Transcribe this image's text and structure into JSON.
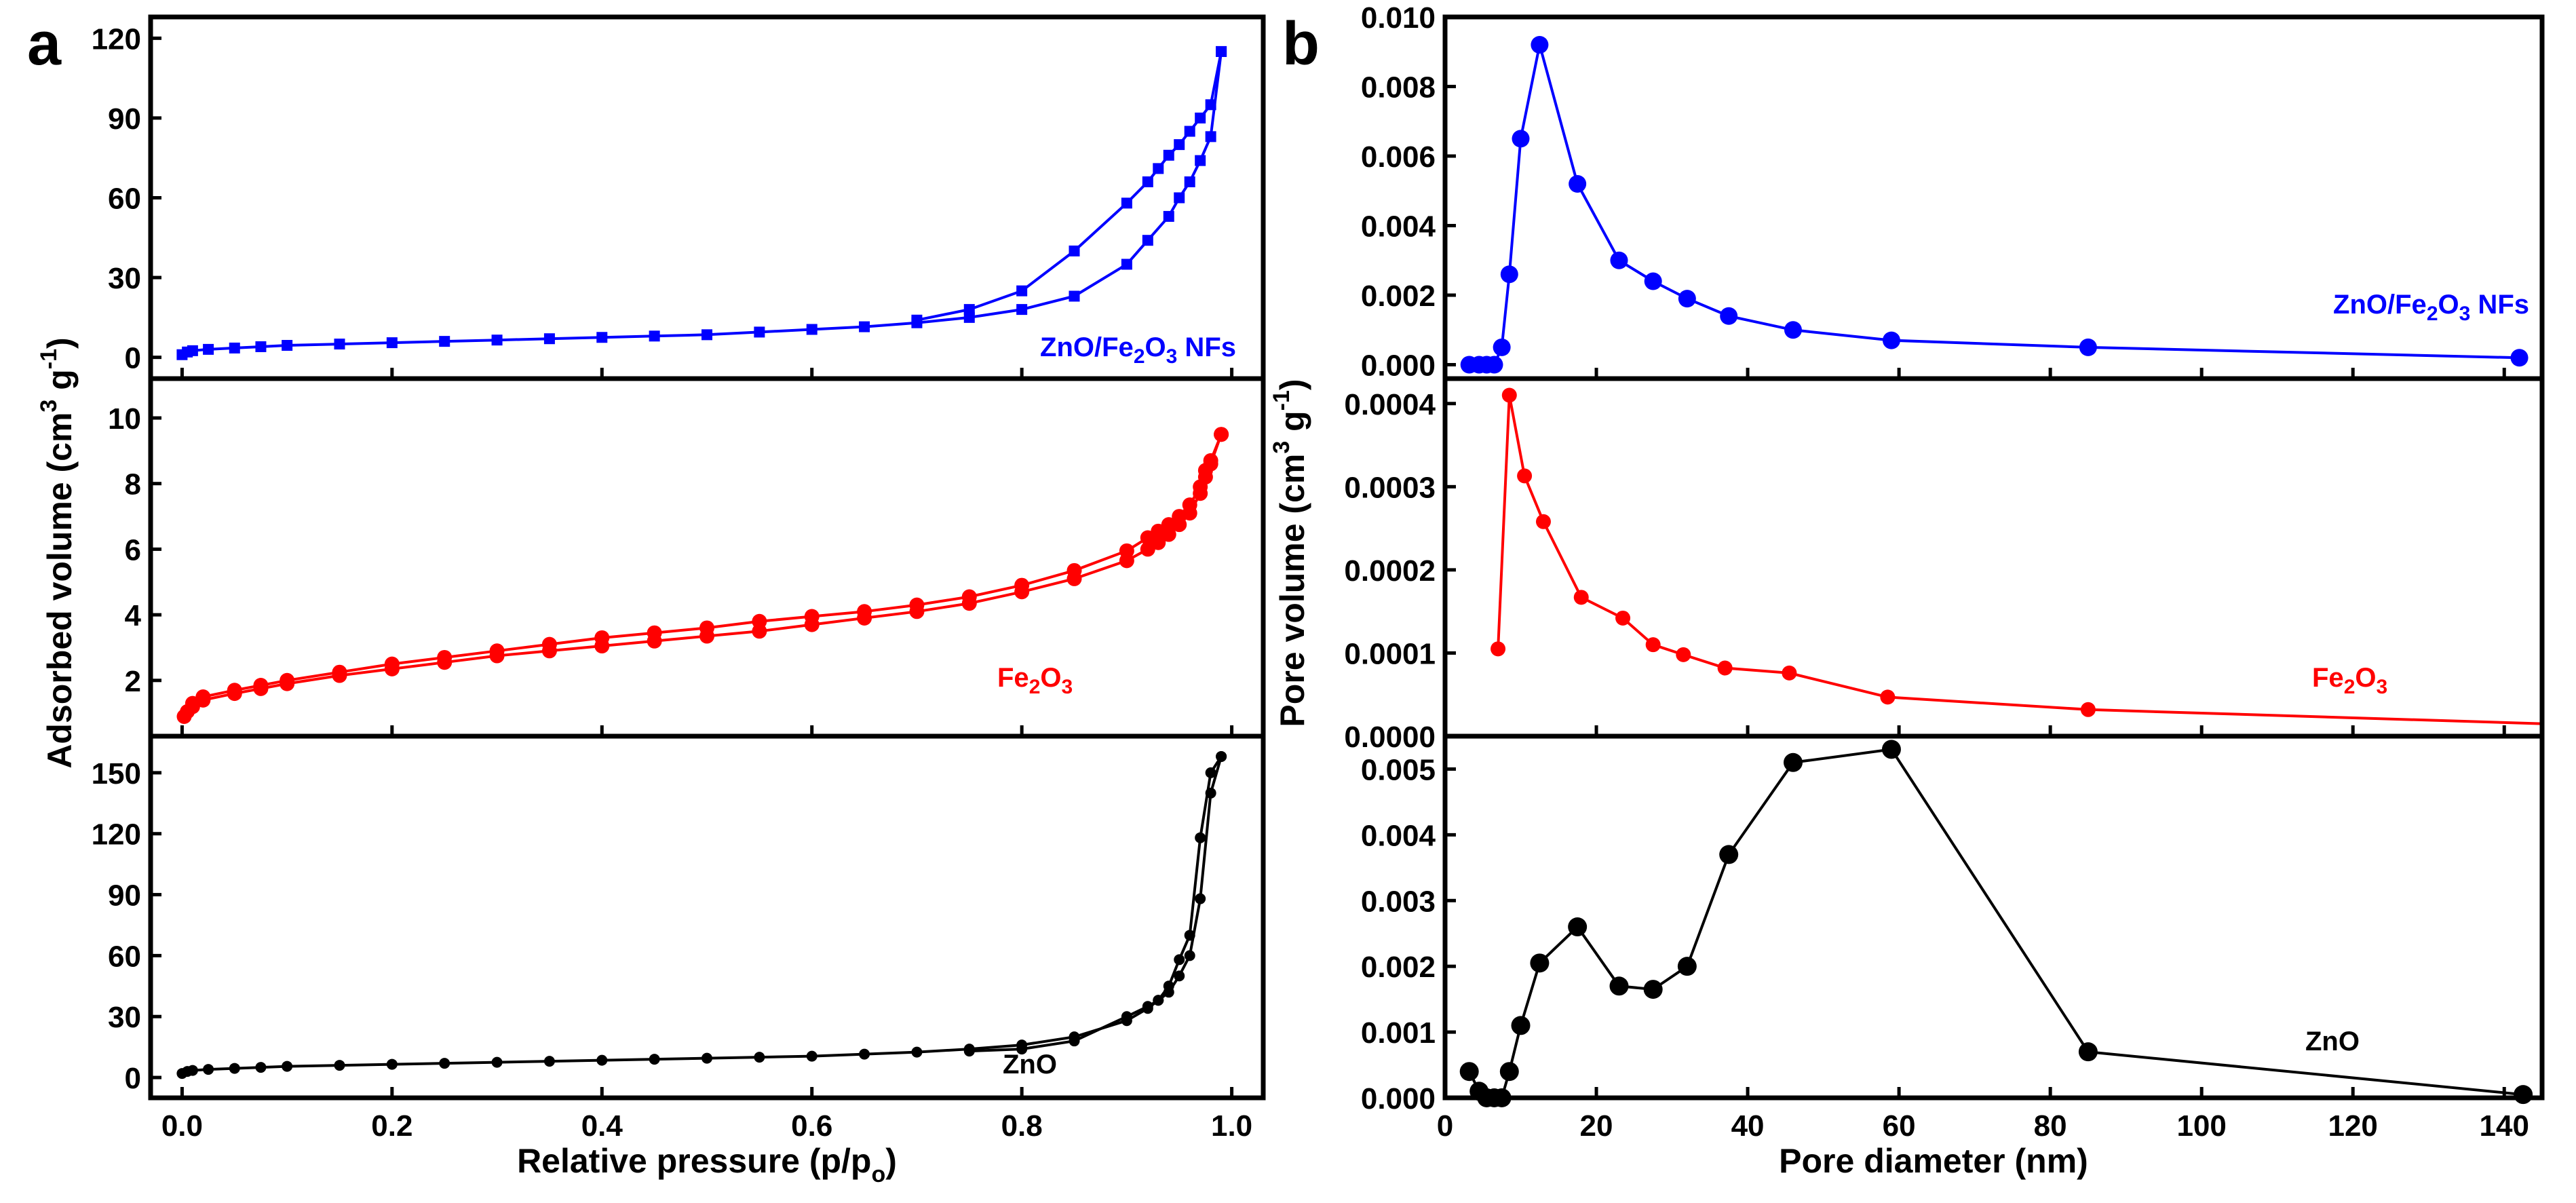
{
  "panels": {
    "a": {
      "label": "a",
      "xlabel_main": "Relative pressure (p/p",
      "xlabel_sub": "o",
      "xlabel_close": ")",
      "ylabel_main": "Adsorbed volume (cm",
      "ylabel_sup1": "3",
      "ylabel_mid": " g",
      "ylabel_sup2": "-1",
      "ylabel_close": ")"
    },
    "b": {
      "label": "b",
      "xlabel": "Pore diameter (nm)",
      "ylabel_main": "Pore volume (cm",
      "ylabel_sup1": "3",
      "ylabel_mid": " g",
      "ylabel_sup2": "-1",
      "ylabel_close": ")"
    }
  },
  "chart_data": [
    {
      "id": "a-top",
      "type": "line",
      "panel": "a",
      "color": "#0000ff",
      "marker": "square",
      "legend_a": "ZnO/Fe",
      "legend_b": "2",
      "legend_c": "O",
      "legend_d": "3",
      "legend_e": " NFs",
      "xlim": [
        -0.03,
        1.03
      ],
      "ylim": [
        -8,
        128
      ],
      "yticks": [
        0,
        30,
        60,
        90,
        120
      ],
      "ytick_labels": [
        "0",
        "30",
        "60",
        "90",
        "120"
      ],
      "xticks": [
        0,
        0.2,
        0.4,
        0.6,
        0.8,
        1.0
      ],
      "xtick_labels": [
        "0.0",
        "0.2",
        "0.4",
        "0.6",
        "0.8",
        "1.0"
      ],
      "series": [
        {
          "name": "adsorption",
          "x": [
            0,
            0.005,
            0.01,
            0.025,
            0.05,
            0.075,
            0.1,
            0.15,
            0.2,
            0.25,
            0.3,
            0.35,
            0.4,
            0.45,
            0.5,
            0.55,
            0.6,
            0.65,
            0.7,
            0.75,
            0.8,
            0.85,
            0.9,
            0.92,
            0.94,
            0.95,
            0.96,
            0.97,
            0.98,
            0.99
          ],
          "y": [
            1,
            2,
            2.5,
            3,
            3.5,
            4,
            4.5,
            5,
            5.5,
            6,
            6.5,
            7,
            7.5,
            8,
            8.5,
            9.5,
            10.5,
            11.5,
            13,
            15,
            18,
            23,
            35,
            44,
            53,
            60,
            66,
            74,
            83,
            115
          ]
        },
        {
          "name": "desorption",
          "x": [
            0.99,
            0.98,
            0.97,
            0.96,
            0.95,
            0.94,
            0.93,
            0.92,
            0.9,
            0.85,
            0.8,
            0.75,
            0.7
          ],
          "y": [
            115,
            95,
            90,
            85,
            80,
            76,
            71,
            66,
            58,
            40,
            25,
            18,
            14
          ]
        }
      ]
    },
    {
      "id": "a-mid",
      "type": "line",
      "panel": "a",
      "color": "#ff0000",
      "marker": "circle",
      "legend_a": "Fe",
      "legend_b": "2",
      "legend_c": "O",
      "legend_d": "3",
      "legend_e": "",
      "xlim": [
        -0.03,
        1.03
      ],
      "ylim": [
        0.3,
        11.2
      ],
      "yticks": [
        2,
        4,
        6,
        8,
        10
      ],
      "ytick_labels": [
        "2",
        "4",
        "6",
        "8",
        "10"
      ],
      "xticks": [
        0,
        0.2,
        0.4,
        0.6,
        0.8,
        1.0
      ],
      "xtick_labels": [
        "0.0",
        "0.2",
        "0.4",
        "0.6",
        "0.8",
        "1.0"
      ],
      "series": [
        {
          "name": "adsorption",
          "x": [
            0.002,
            0.005,
            0.01,
            0.02,
            0.05,
            0.075,
            0.1,
            0.15,
            0.2,
            0.25,
            0.3,
            0.35,
            0.4,
            0.45,
            0.5,
            0.55,
            0.6,
            0.65,
            0.7,
            0.75,
            0.8,
            0.85,
            0.9,
            0.92,
            0.93,
            0.94,
            0.95,
            0.96,
            0.97,
            0.975,
            0.98,
            0.99
          ],
          "y": [
            0.9,
            1.05,
            1.2,
            1.4,
            1.6,
            1.75,
            1.9,
            2.15,
            2.35,
            2.55,
            2.75,
            2.9,
            3.05,
            3.2,
            3.35,
            3.5,
            3.7,
            3.9,
            4.1,
            4.35,
            4.7,
            5.1,
            5.65,
            6.0,
            6.2,
            6.45,
            6.75,
            7.1,
            7.7,
            8.2,
            8.6,
            9.5
          ]
        },
        {
          "name": "desorption",
          "x": [
            0.99,
            0.98,
            0.975,
            0.97,
            0.96,
            0.95,
            0.94,
            0.93,
            0.92,
            0.9,
            0.85,
            0.8,
            0.75,
            0.7,
            0.65,
            0.6,
            0.55,
            0.5,
            0.45,
            0.4,
            0.35,
            0.3,
            0.25,
            0.2,
            0.15,
            0.1,
            0.075,
            0.05,
            0.02,
            0.01
          ],
          "y": [
            9.5,
            8.7,
            8.4,
            7.9,
            7.35,
            7.0,
            6.75,
            6.55,
            6.35,
            5.95,
            5.35,
            4.9,
            4.55,
            4.3,
            4.1,
            3.95,
            3.8,
            3.6,
            3.45,
            3.3,
            3.1,
            2.9,
            2.7,
            2.5,
            2.25,
            2.0,
            1.85,
            1.7,
            1.5,
            1.3
          ]
        }
      ]
    },
    {
      "id": "a-bot",
      "type": "line",
      "panel": "a",
      "color": "#000000",
      "marker": "circle",
      "legend_a": "ZnO",
      "legend_b": "",
      "legend_c": "",
      "legend_d": "",
      "legend_e": "",
      "xlim": [
        -0.03,
        1.03
      ],
      "ylim": [
        -10,
        168
      ],
      "yticks": [
        0,
        30,
        60,
        90,
        120,
        150
      ],
      "ytick_labels": [
        "0",
        "30",
        "60",
        "90",
        "120",
        "150"
      ],
      "xticks": [
        0,
        0.2,
        0.4,
        0.6,
        0.8,
        1.0
      ],
      "xtick_labels": [
        "0.0",
        "0.2",
        "0.4",
        "0.6",
        "0.8",
        "1.0"
      ],
      "series": [
        {
          "name": "adsorption",
          "x": [
            0,
            0.005,
            0.01,
            0.025,
            0.05,
            0.075,
            0.1,
            0.15,
            0.2,
            0.25,
            0.3,
            0.35,
            0.4,
            0.45,
            0.5,
            0.55,
            0.6,
            0.65,
            0.7,
            0.75,
            0.8,
            0.85,
            0.9,
            0.92,
            0.93,
            0.94,
            0.95,
            0.96,
            0.97,
            0.98,
            0.99
          ],
          "y": [
            2,
            3,
            3.5,
            4,
            4.5,
            5,
            5.5,
            6,
            6.5,
            7,
            7.5,
            8,
            8.5,
            9,
            9.5,
            10,
            10.5,
            11.5,
            12.5,
            14,
            16,
            20,
            28,
            34,
            38,
            45,
            58,
            70,
            118,
            150,
            158
          ]
        },
        {
          "name": "desorption",
          "x": [
            0.99,
            0.98,
            0.97,
            0.96,
            0.95,
            0.94,
            0.93,
            0.92,
            0.9,
            0.85,
            0.8,
            0.75
          ],
          "y": [
            158,
            140,
            88,
            60,
            50,
            42,
            38,
            35,
            30,
            18,
            14,
            13
          ]
        }
      ]
    },
    {
      "id": "b-top",
      "type": "line",
      "panel": "b",
      "color": "#0000ff",
      "marker": "circle",
      "legend_a": "ZnO/Fe",
      "legend_b": "2",
      "legend_c": "O",
      "legend_d": "3",
      "legend_e": " NFs",
      "xlim": [
        0,
        145
      ],
      "ylim": [
        -0.0004,
        0.01
      ],
      "yticks": [
        0,
        0.002,
        0.004,
        0.006,
        0.008,
        0.01
      ],
      "ytick_labels": [
        "0.000",
        "0.002",
        "0.004",
        "0.006",
        "0.008",
        "0.010"
      ],
      "xticks": [
        0,
        20,
        40,
        60,
        80,
        100,
        120,
        140
      ],
      "xtick_labels": [
        "0",
        "20",
        "40",
        "60",
        "80",
        "100",
        "120",
        "140"
      ],
      "series": [
        {
          "name": "pore-size-distribution",
          "x": [
            3.2,
            4.5,
            5.5,
            6.5,
            7.5,
            8.5,
            10,
            12.5,
            17.5,
            23,
            27.5,
            32,
            37.5,
            46,
            59,
            85,
            142
          ],
          "y": [
            0,
            0,
            0,
            0,
            0.0005,
            0.0026,
            0.0065,
            0.0092,
            0.0052,
            0.003,
            0.0024,
            0.0019,
            0.0014,
            0.001,
            0.0007,
            0.0005,
            0.0002
          ]
        }
      ]
    },
    {
      "id": "b-mid",
      "type": "line",
      "panel": "b",
      "color": "#ff0000",
      "marker": "circle",
      "legend_a": "Fe",
      "legend_b": "2",
      "legend_c": "O",
      "legend_d": "3",
      "legend_e": "",
      "xlim": [
        0,
        145
      ],
      "ylim": [
        0,
        0.00043
      ],
      "yticks": [
        0,
        0.0001,
        0.0002,
        0.0003,
        0.0004
      ],
      "ytick_labels": [
        "0.0000",
        "0.0001",
        "0.0002",
        "0.0003",
        "0.0004"
      ],
      "xticks": [
        0,
        20,
        40,
        60,
        80,
        100,
        120,
        140
      ],
      "xtick_labels": [
        "0",
        "20",
        "40",
        "60",
        "80",
        "100",
        "120",
        "140"
      ],
      "series": [
        {
          "name": "pore-size-distribution",
          "x": [
            7,
            8.5,
            10.5,
            13,
            18,
            23.5,
            27.5,
            31.5,
            37,
            45.5,
            58.5,
            85,
            145
          ],
          "y": [
            0.000105,
            0.00041,
            0.000313,
            0.000258,
            0.000167,
            0.000142,
            0.00011,
            9.8e-05,
            8.2e-05,
            7.6e-05,
            4.7e-05,
            3.2e-05,
            1.5e-05
          ],
          "markers_count": 12
        }
      ]
    },
    {
      "id": "b-bot",
      "type": "line",
      "panel": "b",
      "color": "#000000",
      "marker": "circle",
      "legend_a": "ZnO",
      "legend_b": "",
      "legend_c": "",
      "legend_d": "",
      "legend_e": "",
      "xlim": [
        0,
        145
      ],
      "ylim": [
        0,
        0.0055
      ],
      "yticks": [
        0,
        0.001,
        0.002,
        0.003,
        0.004,
        0.005
      ],
      "ytick_labels": [
        "0.000",
        "0.001",
        "0.002",
        "0.003",
        "0.004",
        "0.005"
      ],
      "xticks": [
        0,
        20,
        40,
        60,
        80,
        100,
        120,
        140
      ],
      "xtick_labels": [
        "0",
        "20",
        "40",
        "60",
        "80",
        "100",
        "120",
        "140"
      ],
      "series": [
        {
          "name": "pore-size-distribution",
          "x": [
            3.2,
            4.5,
            5.5,
            6.5,
            7.5,
            8.5,
            10,
            12.5,
            17.5,
            23,
            27.5,
            32,
            37.5,
            46,
            59,
            85,
            142.5
          ],
          "y": [
            0.0004,
            0.0001,
            0,
            0,
            0,
            0.0004,
            0.0011,
            0.00205,
            0.0026,
            0.0017,
            0.00165,
            0.002,
            0.0037,
            0.0051,
            0.0053,
            0.0007,
            5e-05
          ]
        }
      ]
    }
  ]
}
